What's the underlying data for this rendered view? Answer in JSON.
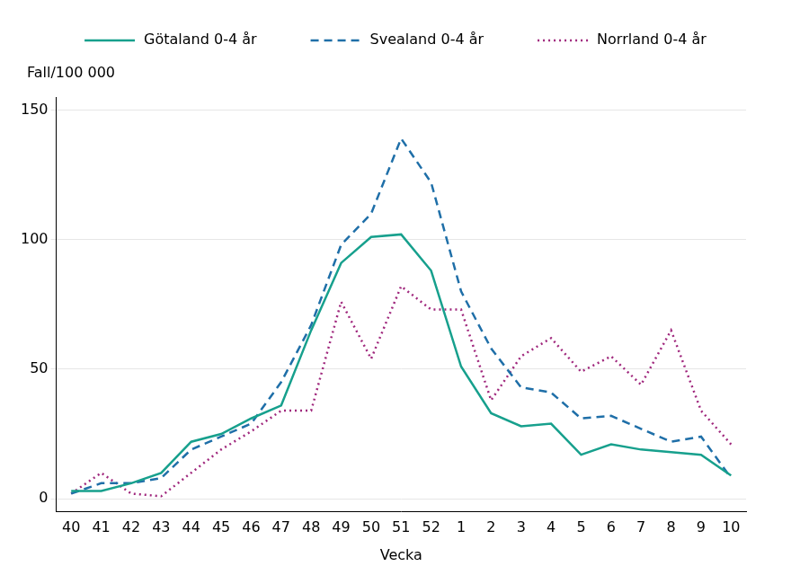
{
  "chart_data": {
    "type": "line",
    "y_label": "Fall/100 000",
    "x_label": "Vecka",
    "categories": [
      "40",
      "41",
      "42",
      "43",
      "44",
      "45",
      "46",
      "47",
      "48",
      "49",
      "50",
      "51",
      "52",
      "1",
      "2",
      "3",
      "4",
      "5",
      "6",
      "7",
      "8",
      "9",
      "10"
    ],
    "series": [
      {
        "name": "Götaland 0-4 år",
        "color": "#17a08d",
        "line_style": "solid",
        "values": [
          3,
          3,
          6,
          10,
          22,
          25,
          31,
          36,
          65,
          91,
          101,
          102,
          88,
          51,
          33,
          28,
          29,
          17,
          21,
          19,
          18,
          17,
          9
        ]
      },
      {
        "name": "Svealand 0-4 år",
        "color": "#1f6fa8",
        "line_style": "dashed",
        "values": [
          2,
          6,
          6,
          8,
          19,
          24,
          29,
          45,
          67,
          98,
          110,
          139,
          122,
          80,
          58,
          43,
          41,
          31,
          32,
          27,
          22,
          24,
          8
        ]
      },
      {
        "name": "Norrland 0-4 år",
        "color": "#a0287d",
        "line_style": "dotted",
        "values": [
          2,
          10,
          2,
          1,
          10,
          19,
          26,
          34,
          34,
          76,
          54,
          82,
          73,
          73,
          38,
          55,
          62,
          49,
          55,
          44,
          65,
          34,
          21
        ]
      }
    ],
    "ylim": [
      -5,
      155
    ],
    "yticks": [
      0,
      50,
      100,
      150
    ],
    "grid": true,
    "legend": "top"
  }
}
